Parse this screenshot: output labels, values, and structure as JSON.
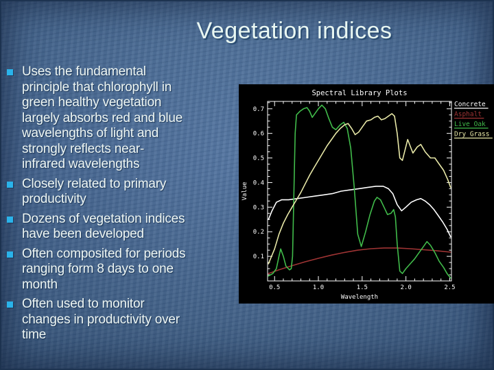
{
  "slide": {
    "title": "Vegetation indices",
    "bullets": [
      "Uses the fundamental\nprinciple that chlorophyll in\ngreen healthy vegetation\nlargely absorbs red and blue\nwavelengths of light and\nstrongly reflects near-\ninfrared wavelengths",
      "Closely related to primary\nproductivity",
      "Dozens of vegetation indices\nhave been developed",
      "Often composited for periods\nranging form 8 days to one\nmonth",
      "Often used to monitor\nchanges in productivity over\ntime"
    ],
    "bullet_color": "#2ab3ea",
    "text_color": "#eff7f4",
    "title_color": "#e9f7f2",
    "background_color": "#4a6d9b"
  },
  "chart_data": {
    "type": "line",
    "title": "Spectral Library Plots",
    "xlabel": "Wavelength",
    "ylabel": "Value",
    "xlim": [
      0.42,
      2.52
    ],
    "ylim": [
      0,
      0.73
    ],
    "x_ticks": [
      "0.5",
      "1.0",
      "1.5",
      "2.0",
      "2.5"
    ],
    "x_tick_values": [
      0.5,
      1.0,
      1.5,
      2.0,
      2.5
    ],
    "y_ticks": [
      "0.1",
      "0.2",
      "0.3",
      "0.4",
      "0.5",
      "0.6",
      "0.7"
    ],
    "y_tick_values": [
      0.1,
      0.2,
      0.3,
      0.4,
      0.5,
      0.6,
      0.7
    ],
    "grid": false,
    "background": "#000000",
    "axis_color": "#ffffff",
    "legend_position": "top-right-outside",
    "series": [
      {
        "name": "Concrete",
        "color": "#ffffff",
        "points": [
          [
            0.43,
            0.25
          ],
          [
            0.47,
            0.285
          ],
          [
            0.52,
            0.32
          ],
          [
            0.58,
            0.33
          ],
          [
            0.66,
            0.33
          ],
          [
            0.76,
            0.335
          ],
          [
            0.86,
            0.34
          ],
          [
            0.96,
            0.345
          ],
          [
            1.06,
            0.35
          ],
          [
            1.16,
            0.355
          ],
          [
            1.26,
            0.365
          ],
          [
            1.36,
            0.37
          ],
          [
            1.46,
            0.375
          ],
          [
            1.56,
            0.38
          ],
          [
            1.66,
            0.385
          ],
          [
            1.74,
            0.385
          ],
          [
            1.8,
            0.375
          ],
          [
            1.85,
            0.355
          ],
          [
            1.9,
            0.31
          ],
          [
            1.95,
            0.285
          ],
          [
            2.0,
            0.3
          ],
          [
            2.06,
            0.32
          ],
          [
            2.12,
            0.33
          ],
          [
            2.17,
            0.335
          ],
          [
            2.22,
            0.325
          ],
          [
            2.27,
            0.31
          ],
          [
            2.32,
            0.29
          ],
          [
            2.37,
            0.265
          ],
          [
            2.42,
            0.24
          ],
          [
            2.47,
            0.21
          ],
          [
            2.51,
            0.18
          ]
        ]
      },
      {
        "name": "Asphalt",
        "color": "#a03434",
        "points": [
          [
            0.43,
            0.03
          ],
          [
            0.55,
            0.045
          ],
          [
            0.7,
            0.062
          ],
          [
            0.85,
            0.078
          ],
          [
            1.0,
            0.092
          ],
          [
            1.15,
            0.105
          ],
          [
            1.3,
            0.116
          ],
          [
            1.45,
            0.125
          ],
          [
            1.6,
            0.131
          ],
          [
            1.75,
            0.134
          ],
          [
            1.9,
            0.134
          ],
          [
            2.05,
            0.131
          ],
          [
            2.2,
            0.127
          ],
          [
            2.35,
            0.123
          ],
          [
            2.51,
            0.117
          ]
        ]
      },
      {
        "name": "Live Oak",
        "color": "#41bc4b",
        "points": [
          [
            0.43,
            0.02
          ],
          [
            0.48,
            0.03
          ],
          [
            0.52,
            0.05
          ],
          [
            0.55,
            0.1
          ],
          [
            0.57,
            0.13
          ],
          [
            0.6,
            0.1
          ],
          [
            0.63,
            0.06
          ],
          [
            0.67,
            0.045
          ],
          [
            0.69,
            0.05
          ],
          [
            0.705,
            0.1
          ],
          [
            0.72,
            0.35
          ],
          [
            0.735,
            0.6
          ],
          [
            0.75,
            0.675
          ],
          [
            0.79,
            0.69
          ],
          [
            0.83,
            0.7
          ],
          [
            0.87,
            0.705
          ],
          [
            0.9,
            0.69
          ],
          [
            0.93,
            0.665
          ],
          [
            0.96,
            0.68
          ],
          [
            1.0,
            0.7
          ],
          [
            1.04,
            0.715
          ],
          [
            1.08,
            0.7
          ],
          [
            1.12,
            0.66
          ],
          [
            1.16,
            0.625
          ],
          [
            1.2,
            0.615
          ],
          [
            1.25,
            0.635
          ],
          [
            1.29,
            0.645
          ],
          [
            1.33,
            0.62
          ],
          [
            1.37,
            0.54
          ],
          [
            1.41,
            0.38
          ],
          [
            1.45,
            0.19
          ],
          [
            1.49,
            0.14
          ],
          [
            1.54,
            0.2
          ],
          [
            1.59,
            0.27
          ],
          [
            1.64,
            0.325
          ],
          [
            1.67,
            0.34
          ],
          [
            1.71,
            0.33
          ],
          [
            1.75,
            0.3
          ],
          [
            1.79,
            0.27
          ],
          [
            1.83,
            0.275
          ],
          [
            1.86,
            0.29
          ],
          [
            1.88,
            0.26
          ],
          [
            1.9,
            0.15
          ],
          [
            1.93,
            0.04
          ],
          [
            1.96,
            0.03
          ],
          [
            2.0,
            0.05
          ],
          [
            2.05,
            0.07
          ],
          [
            2.1,
            0.09
          ],
          [
            2.15,
            0.115
          ],
          [
            2.2,
            0.14
          ],
          [
            2.24,
            0.16
          ],
          [
            2.28,
            0.145
          ],
          [
            2.33,
            0.115
          ],
          [
            2.38,
            0.08
          ],
          [
            2.43,
            0.055
          ],
          [
            2.47,
            0.03
          ],
          [
            2.51,
            0.012
          ]
        ]
      },
      {
        "name": "Dry Grass",
        "color": "#e9e9a8",
        "points": [
          [
            0.43,
            0.07
          ],
          [
            0.5,
            0.13
          ],
          [
            0.55,
            0.19
          ],
          [
            0.6,
            0.235
          ],
          [
            0.65,
            0.27
          ],
          [
            0.7,
            0.3
          ],
          [
            0.75,
            0.33
          ],
          [
            0.8,
            0.36
          ],
          [
            0.85,
            0.395
          ],
          [
            0.9,
            0.43
          ],
          [
            0.95,
            0.46
          ],
          [
            1.0,
            0.49
          ],
          [
            1.05,
            0.52
          ],
          [
            1.1,
            0.55
          ],
          [
            1.15,
            0.575
          ],
          [
            1.2,
            0.6
          ],
          [
            1.25,
            0.62
          ],
          [
            1.3,
            0.635
          ],
          [
            1.34,
            0.64
          ],
          [
            1.38,
            0.62
          ],
          [
            1.42,
            0.595
          ],
          [
            1.46,
            0.605
          ],
          [
            1.5,
            0.625
          ],
          [
            1.55,
            0.65
          ],
          [
            1.6,
            0.655
          ],
          [
            1.64,
            0.665
          ],
          [
            1.68,
            0.67
          ],
          [
            1.72,
            0.655
          ],
          [
            1.76,
            0.66
          ],
          [
            1.8,
            0.67
          ],
          [
            1.84,
            0.68
          ],
          [
            1.87,
            0.67
          ],
          [
            1.9,
            0.6
          ],
          [
            1.93,
            0.5
          ],
          [
            1.96,
            0.49
          ],
          [
            2.02,
            0.575
          ],
          [
            2.08,
            0.52
          ],
          [
            2.13,
            0.545
          ],
          [
            2.17,
            0.555
          ],
          [
            2.22,
            0.525
          ],
          [
            2.28,
            0.5
          ],
          [
            2.33,
            0.5
          ],
          [
            2.38,
            0.475
          ],
          [
            2.43,
            0.45
          ],
          [
            2.48,
            0.41
          ],
          [
            2.51,
            0.38
          ]
        ]
      }
    ]
  }
}
